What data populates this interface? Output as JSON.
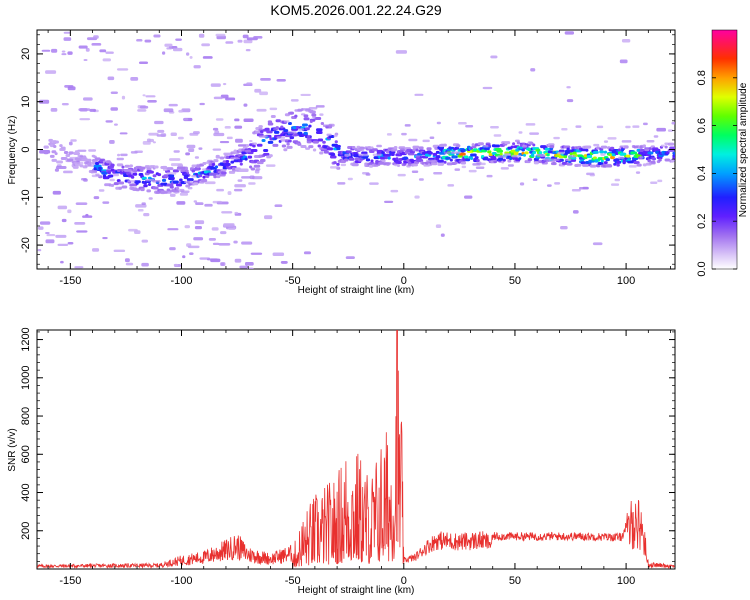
{
  "title": "KOM5.2026.001.22.24.G29",
  "chart_data": [
    {
      "type": "heatmap",
      "xlabel": "Height of straight line (km)",
      "ylabel": "Frequency (Hz)",
      "xlim": [
        -165,
        122
      ],
      "ylim": [
        -25,
        25
      ],
      "xticks": [
        -150,
        -100,
        -50,
        0,
        50,
        100
      ],
      "yticks": [
        -20,
        -10,
        0,
        10,
        20
      ],
      "colorbar": {
        "label": "Normalized spectral amplitude",
        "range": [
          0,
          1
        ],
        "ticks": [
          0,
          0.2,
          0.4,
          0.6,
          0.8
        ],
        "tick_labels": [
          "0.0",
          "0.2",
          "0.4",
          "0.6",
          "0.8"
        ],
        "colormap": [
          "#ffffff",
          "#d4b8f5",
          "#8a2be2",
          "#2000ff",
          "#00c8ff",
          "#00ff80",
          "#80ff00",
          "#ffff00",
          "#ff8000",
          "#ff0000",
          "#ff00a0"
        ]
      },
      "ridge": {
        "description_points": [
          {
            "x": -160,
            "y": 0
          },
          {
            "x": -130,
            "y": -5.5
          },
          {
            "x": -110,
            "y": -6.5
          },
          {
            "x": -100,
            "y": -6
          },
          {
            "x": -85,
            "y": -4
          },
          {
            "x": -70,
            "y": -1
          },
          {
            "x": -60,
            "y": 3
          },
          {
            "x": -50,
            "y": 4.5
          },
          {
            "x": -40,
            "y": 4
          },
          {
            "x": -35,
            "y": 2
          },
          {
            "x": -30,
            "y": -1
          },
          {
            "x": -20,
            "y": -1.5
          },
          {
            "x": 0,
            "y": -1.5
          },
          {
            "x": 20,
            "y": -1
          },
          {
            "x": 50,
            "y": -0.5
          },
          {
            "x": 80,
            "y": -1.5
          },
          {
            "x": 100,
            "y": -1.5
          },
          {
            "x": 122,
            "y": -0.5
          }
        ],
        "peak_amplitude_region": [
          15,
          105
        ]
      }
    },
    {
      "type": "line",
      "xlabel": "Height of straight line (km)",
      "ylabel": "SNR (v/v)",
      "xlim": [
        -165,
        122
      ],
      "ylim": [
        0,
        1250
      ],
      "xticks": [
        -150,
        -100,
        -50,
        0,
        50,
        100
      ],
      "yticks": [
        200,
        400,
        600,
        800,
        1000,
        1200
      ],
      "color": "#e8302e",
      "envelope": [
        {
          "x": -165,
          "y": 20
        },
        {
          "x": -110,
          "y": 25
        },
        {
          "x": -100,
          "y": 60
        },
        {
          "x": -90,
          "y": 80
        },
        {
          "x": -80,
          "y": 130
        },
        {
          "x": -75,
          "y": 160
        },
        {
          "x": -70,
          "y": 100
        },
        {
          "x": -60,
          "y": 70
        },
        {
          "x": -50,
          "y": 110
        },
        {
          "x": -45,
          "y": 300
        },
        {
          "x": -40,
          "y": 400
        },
        {
          "x": -35,
          "y": 450
        },
        {
          "x": -30,
          "y": 500
        },
        {
          "x": -25,
          "y": 700
        },
        {
          "x": -20,
          "y": 620
        },
        {
          "x": -15,
          "y": 500
        },
        {
          "x": -10,
          "y": 700
        },
        {
          "x": -5,
          "y": 800
        },
        {
          "x": -3,
          "y": 1250
        },
        {
          "x": -1,
          "y": 900
        },
        {
          "x": 0,
          "y": 60
        },
        {
          "x": 5,
          "y": 80
        },
        {
          "x": 10,
          "y": 150
        },
        {
          "x": 15,
          "y": 200
        },
        {
          "x": 25,
          "y": 190
        },
        {
          "x": 35,
          "y": 200
        },
        {
          "x": 40,
          "y": 175
        },
        {
          "x": 60,
          "y": 175
        },
        {
          "x": 80,
          "y": 175
        },
        {
          "x": 98,
          "y": 170
        },
        {
          "x": 100,
          "y": 230
        },
        {
          "x": 103,
          "y": 330
        },
        {
          "x": 107,
          "y": 300
        },
        {
          "x": 110,
          "y": 30
        },
        {
          "x": 122,
          "y": 20
        }
      ]
    }
  ]
}
